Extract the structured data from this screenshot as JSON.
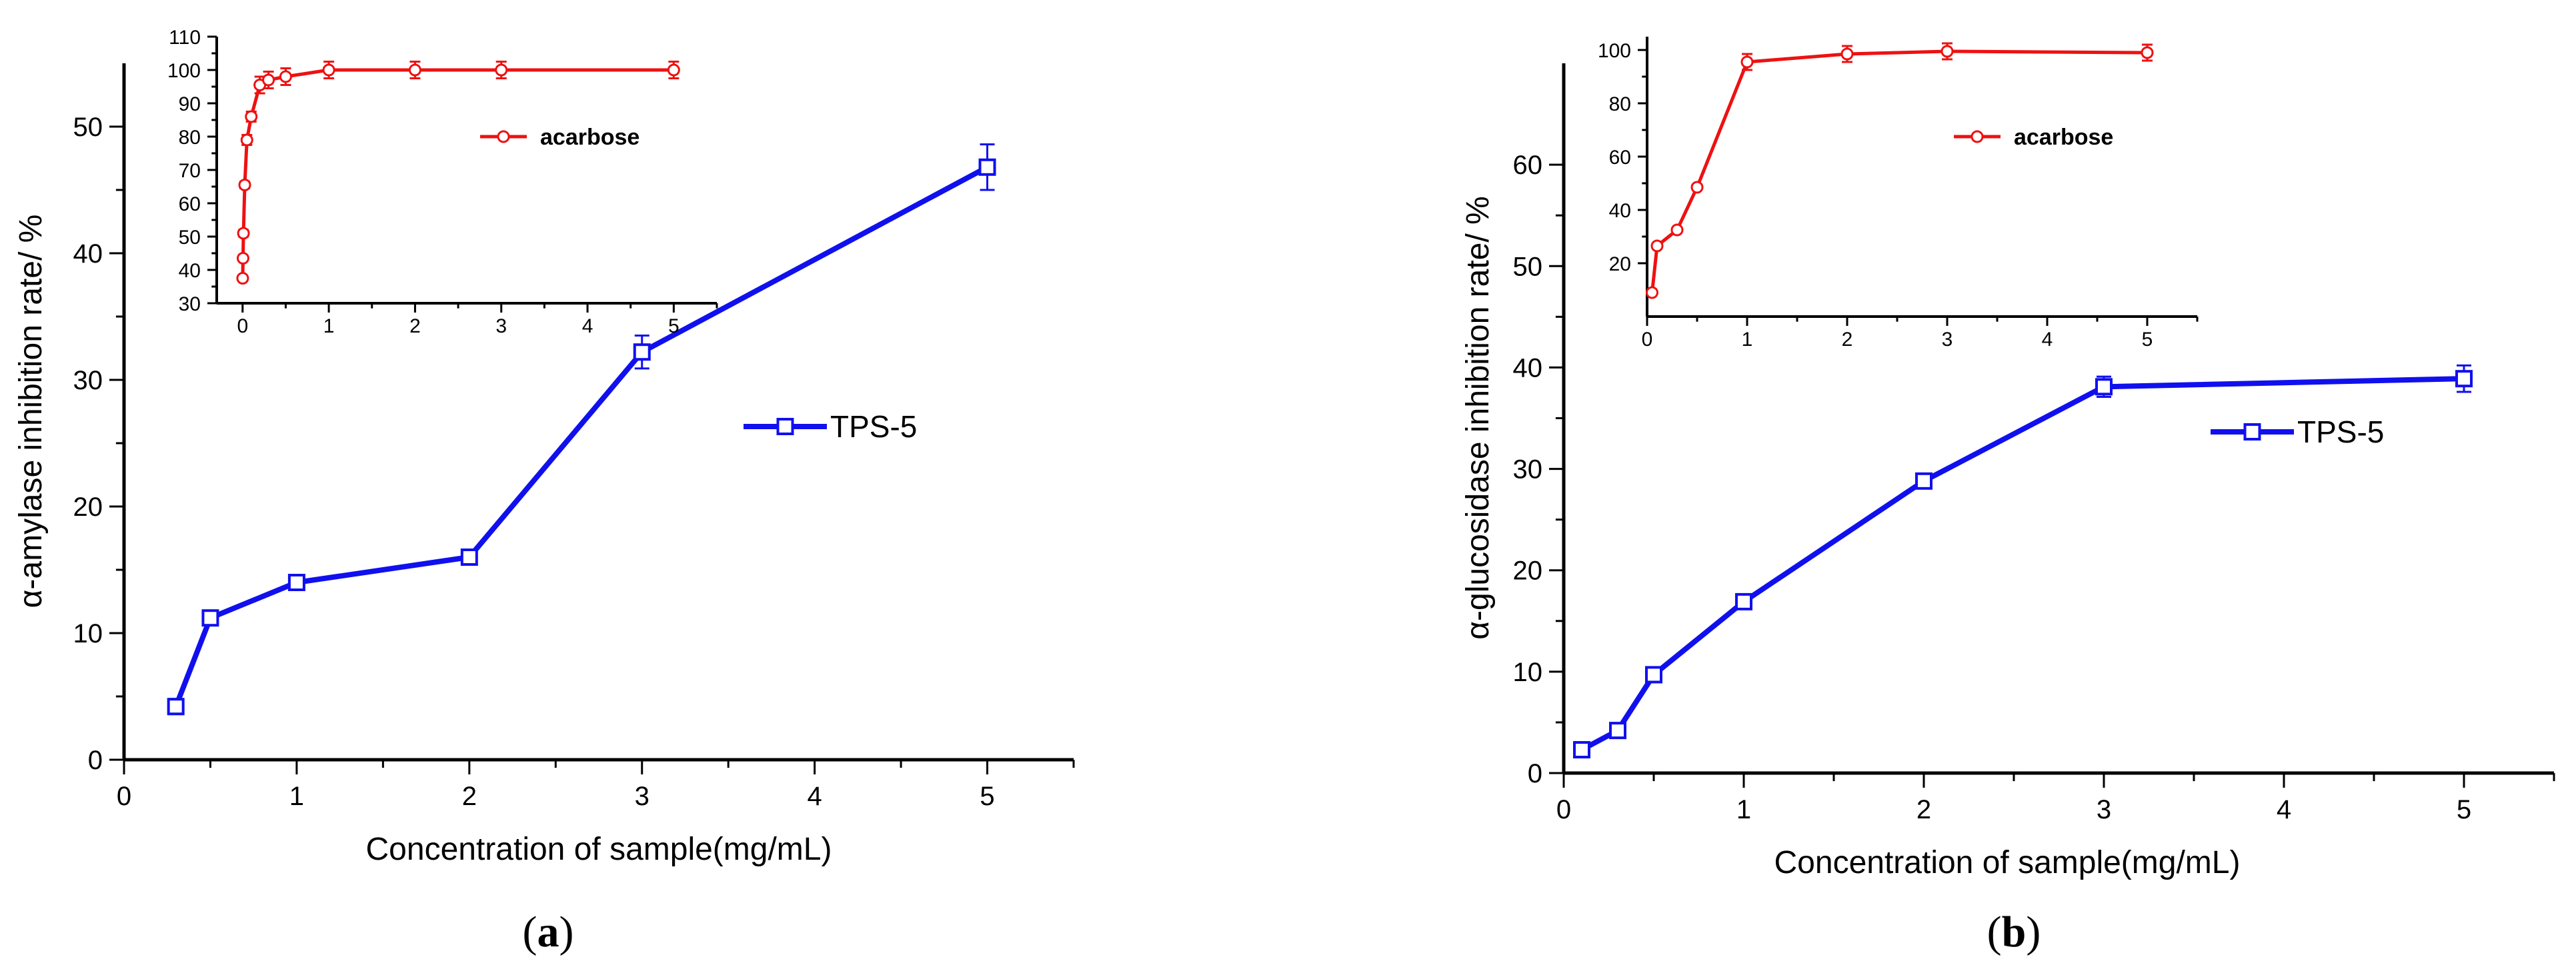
{
  "colors": {
    "main_series": "#1010ee",
    "inset_series": "#ee1111",
    "axis": "#000000"
  },
  "chart_data": [
    {
      "id": "a",
      "type": "line",
      "panel_label": "a",
      "title": "",
      "xlabel": "Concentration of sample(mg/mL)",
      "ylabel": "α-amylase  inhibition rate/ %",
      "xlim": [
        0,
        5.5
      ],
      "ylim": [
        0,
        55
      ],
      "xticks": [
        0,
        1,
        2,
        3,
        4,
        5
      ],
      "yticks": [
        0,
        10,
        20,
        30,
        40,
        50
      ],
      "legend": {
        "label": "TPS-5",
        "placement": "middle-right"
      },
      "series": [
        {
          "name": "TPS-5",
          "color": "#1010ee",
          "marker": "square",
          "x": [
            0.3,
            0.5,
            1,
            2,
            3,
            5
          ],
          "y": [
            4.2,
            11.2,
            14.0,
            16.0,
            32.2,
            46.8
          ],
          "err": [
            0.6,
            0.4,
            0.4,
            0.4,
            1.3,
            1.8
          ]
        }
      ],
      "inset": {
        "type": "line",
        "xlim": [
          -0.3,
          5.5
        ],
        "ylim": [
          30,
          110
        ],
        "xticks": [
          0,
          1,
          2,
          3,
          4,
          5
        ],
        "yticks": [
          30,
          40,
          50,
          60,
          70,
          80,
          90,
          100,
          110
        ],
        "legend": {
          "label": "acarbose",
          "placement": "top-right"
        },
        "series": [
          {
            "name": "acarbose",
            "color": "#ee1111",
            "marker": "circle",
            "x": [
              0.001,
              0.005,
              0.01,
              0.025,
              0.05,
              0.1,
              0.2,
              0.3,
              0.5,
              1,
              2,
              3,
              5
            ],
            "y": [
              37.5,
              43.5,
              51,
              65.5,
              79,
              86,
              95.5,
              97,
              98,
              100,
              100,
              100,
              100
            ],
            "err": [
              0.5,
              0.5,
              1,
              1,
              1.5,
              1.5,
              2.5,
              2.5,
              2.5,
              2.5,
              2.5,
              2.5,
              2.5
            ]
          }
        ]
      }
    },
    {
      "id": "b",
      "type": "line",
      "panel_label": "b",
      "title": "",
      "xlabel": "Concentration of sample(mg/mL)",
      "ylabel": "α-glucosidase inhibition rate/ %",
      "xlim": [
        0,
        5.5
      ],
      "ylim": [
        0,
        70
      ],
      "xticks": [
        0,
        1,
        2,
        3,
        4,
        5
      ],
      "yticks": [
        0,
        10,
        20,
        30,
        40,
        50,
        60
      ],
      "legend": {
        "label": "TPS-5",
        "placement": "middle-right"
      },
      "series": [
        {
          "name": "TPS-5",
          "color": "#1010ee",
          "marker": "square",
          "x": [
            0.1,
            0.3,
            0.5,
            1,
            2,
            3,
            5
          ],
          "y": [
            2.3,
            4.2,
            9.7,
            16.9,
            28.8,
            38.1,
            38.9
          ],
          "err": [
            0.3,
            0.6,
            0.5,
            0.5,
            0.4,
            1.0,
            1.3
          ]
        }
      ],
      "inset": {
        "type": "line",
        "xlim": [
          0,
          5.5
        ],
        "ylim": [
          0,
          105
        ],
        "xticks": [
          0,
          1,
          2,
          3,
          4,
          5
        ],
        "yticks": [
          20,
          40,
          60,
          80,
          100
        ],
        "legend": {
          "label": "acarbose",
          "placement": "top-right"
        },
        "series": [
          {
            "name": "acarbose",
            "color": "#ee1111",
            "marker": "circle",
            "x": [
              0.05,
              0.1,
              0.3,
              0.5,
              1,
              2,
              3,
              5
            ],
            "y": [
              9,
              26.5,
              32.5,
              48.5,
              95.5,
              98.5,
              99.5,
              99
            ],
            "err": [
              1,
              0.5,
              0.5,
              0.5,
              3,
              3,
              3,
              3
            ]
          }
        ]
      }
    }
  ]
}
